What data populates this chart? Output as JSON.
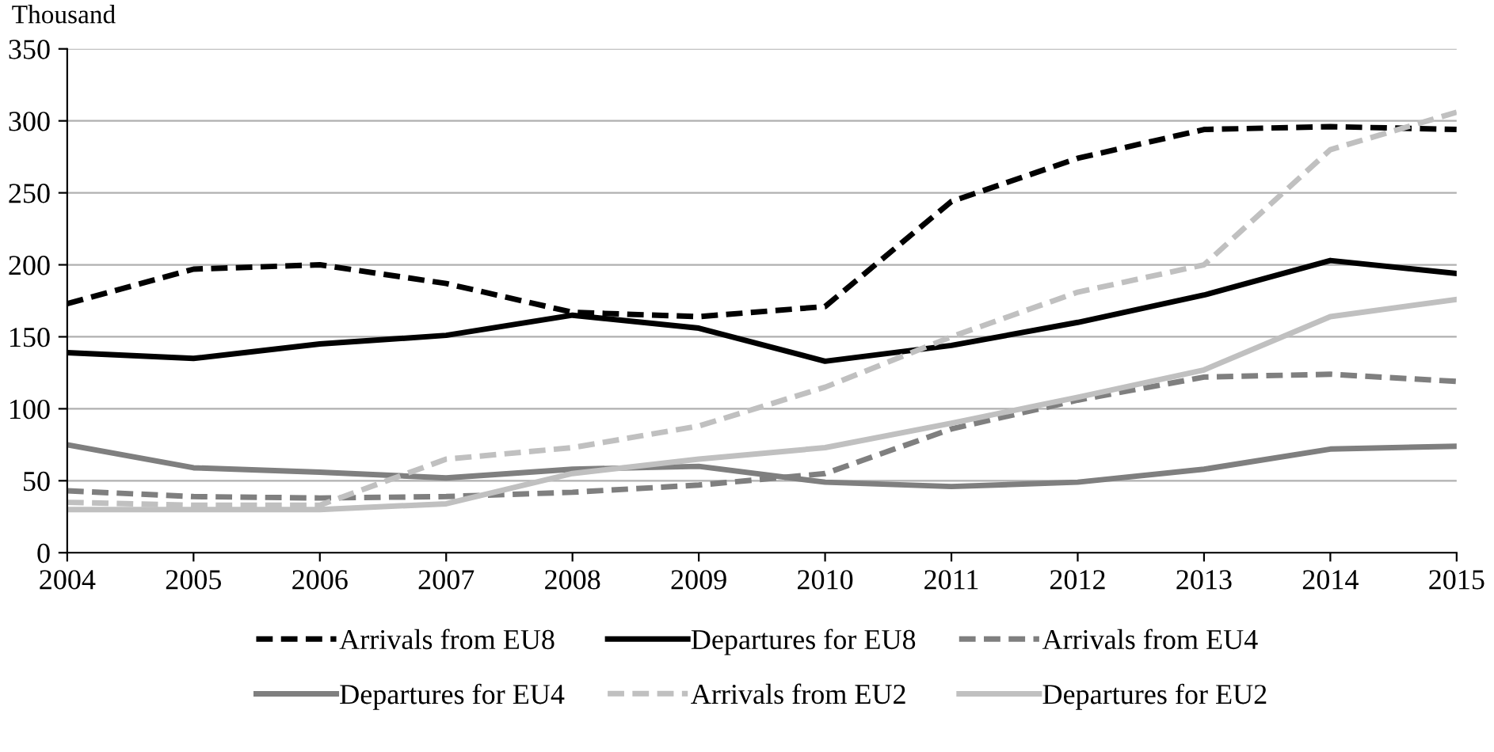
{
  "chart_data": {
    "type": "line",
    "ylabel": "Thousand",
    "x": [
      2004,
      2005,
      2006,
      2007,
      2008,
      2009,
      2010,
      2011,
      2012,
      2013,
      2014,
      2015
    ],
    "xlim": [
      2004,
      2015
    ],
    "xticks": [
      2004,
      2005,
      2006,
      2007,
      2008,
      2009,
      2010,
      2011,
      2012,
      2013,
      2014,
      2015
    ],
    "ylim": [
      0,
      350
    ],
    "yticks": [
      0,
      50,
      100,
      150,
      200,
      250,
      300,
      350
    ],
    "grid": "y",
    "legend": "bottom",
    "marker": "none",
    "series": [
      {
        "name": "Arrivals from EU8",
        "color": "#000000",
        "line_style": "dashed",
        "values": [
          173,
          197,
          200,
          187,
          167,
          164,
          171,
          244,
          274,
          294,
          296,
          294
        ]
      },
      {
        "name": "Departures for EU8",
        "color": "#000000",
        "line_style": "solid",
        "values": [
          139,
          135,
          145,
          151,
          165,
          156,
          133,
          144,
          160,
          179,
          203,
          194
        ]
      },
      {
        "name": "Arrivals from EU4",
        "color": "#7f7f7f",
        "line_style": "dashed",
        "values": [
          43,
          39,
          38,
          39,
          42,
          47,
          55,
          86,
          106,
          122,
          124,
          119
        ]
      },
      {
        "name": "Departures for EU4",
        "color": "#7f7f7f",
        "line_style": "solid",
        "values": [
          75,
          59,
          56,
          52,
          58,
          60,
          49,
          46,
          49,
          58,
          72,
          74
        ]
      },
      {
        "name": "Arrivals from EU2",
        "color": "#c0c0c0",
        "line_style": "dashed",
        "values": [
          35,
          33,
          33,
          65,
          73,
          88,
          115,
          150,
          181,
          200,
          280,
          306
        ]
      },
      {
        "name": "Departures for EU2",
        "color": "#c0c0c0",
        "line_style": "solid",
        "values": [
          30,
          30,
          30,
          34,
          55,
          65,
          73,
          90,
          108,
          127,
          164,
          176
        ]
      }
    ]
  }
}
